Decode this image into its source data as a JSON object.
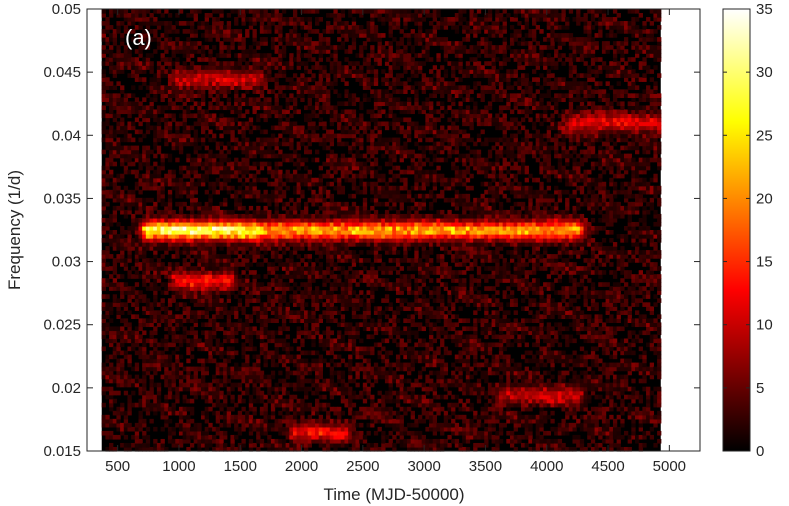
{
  "chart_data": {
    "type": "heatmap",
    "panel_label": "(a)",
    "xlabel": "Time (MJD-50000)",
    "ylabel": "Frequency (1/d)",
    "xlim": [
      250,
      5250
    ],
    "ylim": [
      0.015,
      0.05
    ],
    "data_time_range": [
      370,
      4930
    ],
    "xticks": [
      500,
      1000,
      1500,
      2000,
      2500,
      3000,
      3500,
      4000,
      4500,
      5000
    ],
    "yticks": [
      0.015,
      0.02,
      0.025,
      0.03,
      0.035,
      0.04,
      0.045,
      0.05
    ],
    "ytick_labels": [
      "0.015",
      "0.02",
      "0.025",
      "0.03",
      "0.035",
      "0.04",
      "0.045",
      "0.05"
    ],
    "colorbar": {
      "colormap": "hot",
      "range": [
        0,
        35
      ],
      "ticks": [
        0,
        5,
        10,
        15,
        20,
        25,
        30,
        35
      ]
    },
    "features": [
      {
        "time_range": [
          750,
          1600
        ],
        "frequency": 0.0325,
        "peak_power": 35
      },
      {
        "time_range": [
          1700,
          4250
        ],
        "frequency": 0.0325,
        "peak_power": 25
      },
      {
        "time_range": [
          4200,
          4930
        ],
        "frequency": 0.041,
        "peak_power": 12
      },
      {
        "time_range": [
          1000,
          1400
        ],
        "frequency": 0.0285,
        "peak_power": 14
      },
      {
        "time_range": [
          1000,
          1650
        ],
        "frequency": 0.0445,
        "peak_power": 10
      },
      {
        "time_range": [
          1950,
          2350
        ],
        "frequency": 0.0165,
        "peak_power": 12
      },
      {
        "time_range": [
          3650,
          4250
        ],
        "frequency": 0.0195,
        "peak_power": 10
      }
    ]
  }
}
